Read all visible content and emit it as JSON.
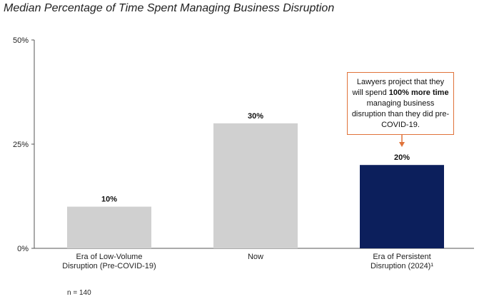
{
  "chart_data": {
    "type": "bar",
    "title": "Median Percentage of Time Spent Managing Business Disruption",
    "categories": [
      [
        "Era of Low-Volume",
        "Disruption (Pre-COVID-19)"
      ],
      [
        "Now"
      ],
      [
        "Era of Persistent",
        "Disruption (2024)¹"
      ]
    ],
    "values": [
      10,
      30,
      20
    ],
    "value_labels": [
      "10%",
      "30%",
      "20%"
    ],
    "bar_colors": [
      "#d0d0d0",
      "#d0d0d0",
      "#0c1f5c"
    ],
    "ylim": [
      0,
      50
    ],
    "yticks": [
      0,
      25,
      50
    ],
    "ytick_labels": [
      "0%",
      "25%",
      "50%"
    ],
    "grid": false,
    "annotation": {
      "parts": [
        {
          "text": "Lawyers project that they will spend ",
          "bold": false
        },
        {
          "text": "100% more time",
          "bold": true
        },
        {
          "text": " managing business disruption than they did pre-COVID-19.",
          "bold": false
        }
      ],
      "border_color": "#e0733a",
      "points_to": "Era of Persistent Disruption (2024)"
    },
    "note": "n = 140"
  }
}
